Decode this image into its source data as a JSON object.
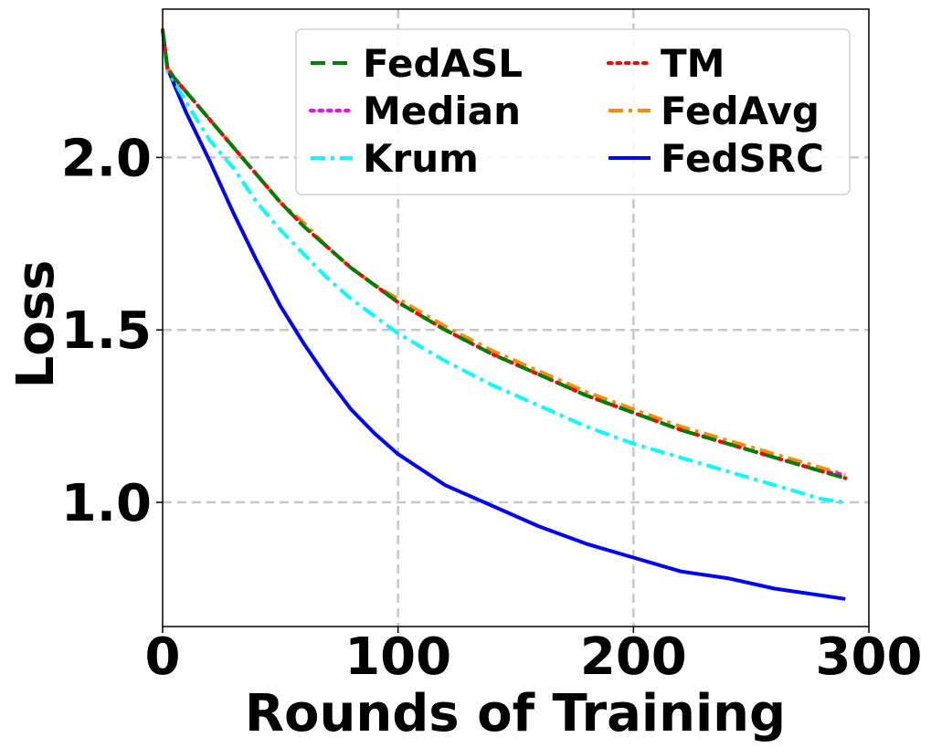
{
  "chart_data": {
    "type": "line",
    "title": "",
    "xlabel": "Rounds of Training",
    "ylabel": "Loss",
    "xlim": [
      0,
      300
    ],
    "ylim": [
      0.64,
      2.43
    ],
    "xticks": [
      "0",
      "100",
      "200",
      "300"
    ],
    "yticks": [
      "1.0",
      "1.5",
      "2.0"
    ],
    "grid": true,
    "legend_position": "top-right",
    "series": [
      {
        "name": "FedASL",
        "color": "#008000",
        "style": "dashed",
        "x": [
          0,
          2,
          5,
          10,
          20,
          30,
          40,
          50,
          60,
          70,
          80,
          90,
          100,
          120,
          140,
          160,
          180,
          200,
          220,
          240,
          260,
          280,
          290
        ],
        "y": [
          2.37,
          2.26,
          2.23,
          2.19,
          2.11,
          2.03,
          1.95,
          1.87,
          1.8,
          1.74,
          1.68,
          1.63,
          1.58,
          1.5,
          1.43,
          1.37,
          1.31,
          1.26,
          1.21,
          1.17,
          1.13,
          1.09,
          1.07
        ]
      },
      {
        "name": "TM",
        "color": "#ff0000",
        "style": "dotted",
        "x": [
          0,
          2,
          5,
          10,
          20,
          30,
          40,
          50,
          60,
          70,
          80,
          90,
          100,
          120,
          140,
          160,
          180,
          200,
          220,
          240,
          260,
          280,
          290
        ],
        "y": [
          2.37,
          2.26,
          2.23,
          2.19,
          2.11,
          2.03,
          1.95,
          1.87,
          1.8,
          1.74,
          1.68,
          1.63,
          1.58,
          1.5,
          1.43,
          1.37,
          1.31,
          1.26,
          1.21,
          1.17,
          1.13,
          1.09,
          1.07
        ]
      },
      {
        "name": "Median",
        "color": "#ff00ff",
        "style": "dotted",
        "x": [
          0,
          2,
          5,
          10,
          20,
          30,
          40,
          50,
          60,
          70,
          80,
          90,
          100,
          120,
          140,
          160,
          180,
          200,
          220,
          240,
          260,
          280,
          290
        ],
        "y": [
          2.37,
          2.26,
          2.23,
          2.19,
          2.11,
          2.03,
          1.95,
          1.87,
          1.8,
          1.74,
          1.68,
          1.63,
          1.58,
          1.5,
          1.43,
          1.37,
          1.31,
          1.26,
          1.21,
          1.17,
          1.13,
          1.09,
          1.08
        ]
      },
      {
        "name": "FedAvg",
        "color": "#ff8c00",
        "style": "dashdot",
        "x": [
          0,
          2,
          5,
          10,
          20,
          30,
          40,
          50,
          60,
          70,
          80,
          90,
          100,
          120,
          140,
          160,
          180,
          200,
          220,
          240,
          260,
          280,
          290
        ],
        "y": [
          2.37,
          2.26,
          2.23,
          2.19,
          2.11,
          2.03,
          1.95,
          1.87,
          1.81,
          1.74,
          1.68,
          1.63,
          1.59,
          1.51,
          1.44,
          1.38,
          1.32,
          1.27,
          1.22,
          1.18,
          1.14,
          1.1,
          1.08
        ]
      },
      {
        "name": "Krum",
        "color": "#00ffff",
        "style": "dashdot",
        "x": [
          0,
          2,
          5,
          10,
          20,
          30,
          40,
          50,
          60,
          70,
          80,
          90,
          100,
          120,
          140,
          160,
          180,
          200,
          220,
          240,
          260,
          280,
          290
        ],
        "y": [
          2.37,
          2.25,
          2.22,
          2.16,
          2.05,
          1.97,
          1.87,
          1.79,
          1.72,
          1.65,
          1.59,
          1.54,
          1.49,
          1.41,
          1.34,
          1.28,
          1.22,
          1.17,
          1.13,
          1.09,
          1.05,
          1.01,
          1.0
        ]
      },
      {
        "name": "FedSRC",
        "color": "#0000ff",
        "style": "solid",
        "x": [
          0,
          2,
          5,
          10,
          20,
          30,
          40,
          50,
          60,
          70,
          80,
          90,
          100,
          120,
          140,
          160,
          180,
          200,
          220,
          240,
          260,
          280,
          290
        ],
        "y": [
          2.37,
          2.26,
          2.21,
          2.13,
          1.99,
          1.84,
          1.7,
          1.57,
          1.46,
          1.36,
          1.27,
          1.2,
          1.14,
          1.05,
          0.99,
          0.93,
          0.88,
          0.84,
          0.8,
          0.78,
          0.75,
          0.73,
          0.72
        ]
      }
    ]
  }
}
